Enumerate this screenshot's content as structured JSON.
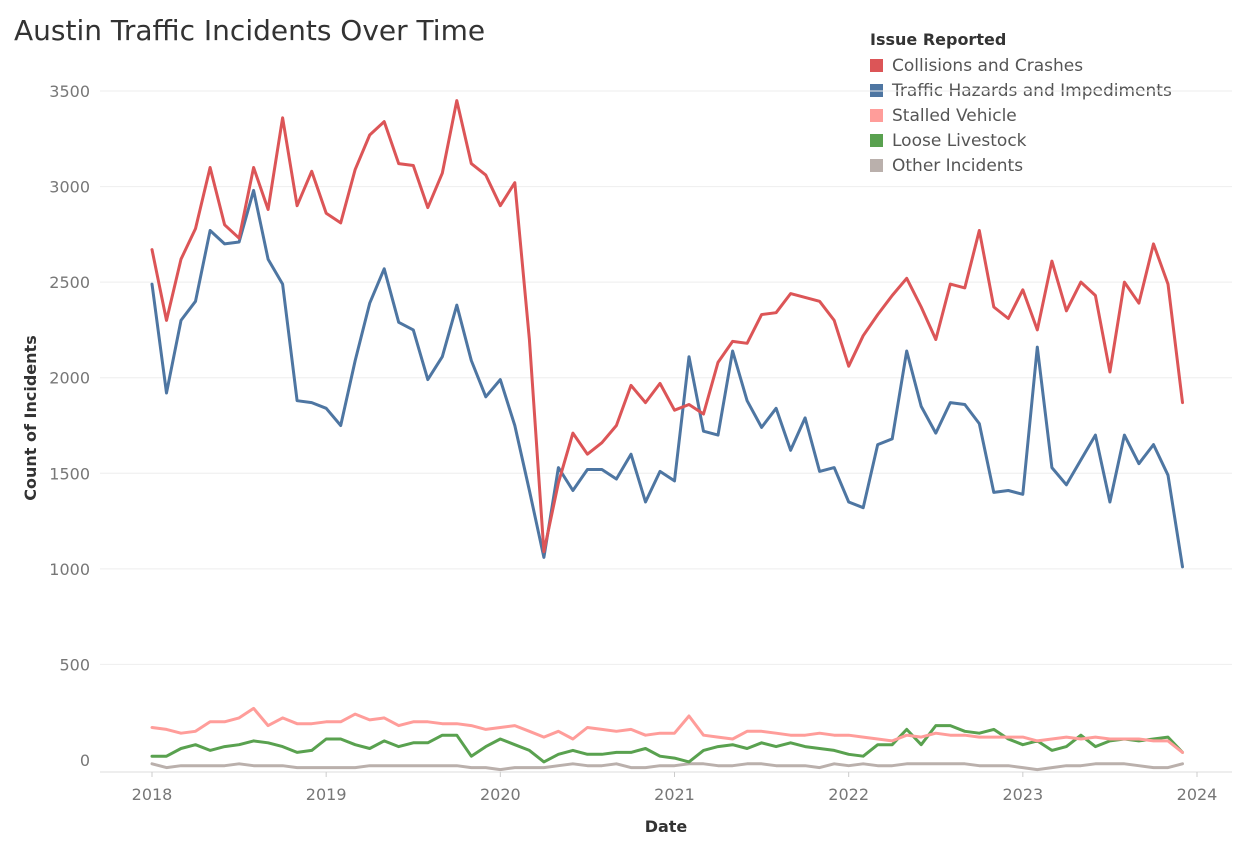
{
  "chart_data": {
    "type": "line",
    "title": "Austin Traffic Incidents Over Time",
    "xlabel": "Date",
    "ylabel": "Count of Incidents",
    "x_ticks": [
      "2018",
      "2019",
      "2020",
      "2021",
      "2022",
      "2023",
      "2024"
    ],
    "y_ticks": [
      0,
      500,
      1000,
      1500,
      2000,
      2500,
      3000,
      3500
    ],
    "xlim": [
      "2017-11",
      "2024-02"
    ],
    "ylim": [
      -60,
      3600
    ],
    "grid": true,
    "legend": {
      "title": "Issue Reported",
      "placement": "top-right"
    },
    "x": [
      "2018-01",
      "2018-02",
      "2018-03",
      "2018-04",
      "2018-05",
      "2018-06",
      "2018-07",
      "2018-08",
      "2018-09",
      "2018-10",
      "2018-11",
      "2018-12",
      "2019-01",
      "2019-02",
      "2019-03",
      "2019-04",
      "2019-05",
      "2019-06",
      "2019-07",
      "2019-08",
      "2019-09",
      "2019-10",
      "2019-11",
      "2019-12",
      "2020-01",
      "2020-02",
      "2020-03",
      "2020-04",
      "2020-05",
      "2020-06",
      "2020-07",
      "2020-08",
      "2020-09",
      "2020-10",
      "2020-11",
      "2020-12",
      "2021-01",
      "2021-02",
      "2021-03",
      "2021-04",
      "2021-05",
      "2021-06",
      "2021-07",
      "2021-08",
      "2021-09",
      "2021-10",
      "2021-11",
      "2021-12",
      "2022-01",
      "2022-02",
      "2022-03",
      "2022-04",
      "2022-05",
      "2022-06",
      "2022-07",
      "2022-08",
      "2022-09",
      "2022-10",
      "2022-11",
      "2022-12",
      "2023-01",
      "2023-02",
      "2023-03",
      "2023-04",
      "2023-05",
      "2023-06",
      "2023-07",
      "2023-08",
      "2023-09",
      "2023-10",
      "2023-11",
      "2023-12"
    ],
    "series": [
      {
        "name": "Collisions and Crashes",
        "color": "#dc5557",
        "values": [
          2670,
          2300,
          2620,
          2780,
          3100,
          2800,
          2730,
          3100,
          2880,
          3360,
          2900,
          3080,
          2860,
          2810,
          3090,
          3270,
          3340,
          3120,
          3110,
          2890,
          3070,
          3450,
          3120,
          3060,
          2900,
          3020,
          2200,
          1090,
          1450,
          1710,
          1600,
          1660,
          1750,
          1960,
          1870,
          1970,
          1830,
          1860,
          1810,
          2080,
          2190,
          2180,
          2330,
          2340,
          2440,
          2420,
          2400,
          2300,
          2060,
          2220,
          2330,
          2430,
          2520,
          2370,
          2200,
          2490,
          2470,
          2770,
          2370,
          2310,
          2460,
          2250,
          2610,
          2350,
          2500,
          2430,
          2030,
          2500,
          2390,
          2700,
          2490,
          1870
        ]
      },
      {
        "name": "Traffic Hazards and Impediments",
        "color": "#4e76a2",
        "values": [
          2490,
          1920,
          2300,
          2400,
          2770,
          2700,
          2710,
          2980,
          2620,
          2490,
          1880,
          1870,
          1840,
          1750,
          2090,
          2390,
          2570,
          2290,
          2250,
          1990,
          2110,
          2380,
          2090,
          1900,
          1990,
          1750,
          1410,
          1060,
          1530,
          1410,
          1520,
          1520,
          1470,
          1600,
          1350,
          1510,
          1460,
          2110,
          1720,
          1700,
          2140,
          1880,
          1740,
          1840,
          1620,
          1790,
          1510,
          1530,
          1350,
          1320,
          1650,
          1680,
          2140,
          1850,
          1710,
          1870,
          1860,
          1760,
          1400,
          1410,
          1390,
          2160,
          1530,
          1440,
          1570,
          1700,
          1350,
          1700,
          1550,
          1650,
          1490,
          1010
        ]
      },
      {
        "name": "Stalled Vehicle",
        "color": "#ff9d9a",
        "values": [
          170,
          160,
          140,
          150,
          200,
          200,
          220,
          270,
          180,
          220,
          190,
          190,
          200,
          200,
          240,
          210,
          220,
          180,
          200,
          200,
          190,
          190,
          180,
          160,
          170,
          180,
          150,
          120,
          150,
          110,
          170,
          160,
          150,
          160,
          130,
          140,
          140,
          230,
          130,
          120,
          110,
          150,
          150,
          140,
          130,
          130,
          140,
          130,
          130,
          120,
          110,
          100,
          130,
          120,
          140,
          130,
          130,
          120,
          120,
          120,
          120,
          100,
          110,
          120,
          110,
          120,
          110,
          110,
          110,
          100,
          100,
          40
        ]
      },
      {
        "name": "Loose Livestock",
        "color": "#59a14f",
        "values": [
          20,
          20,
          60,
          80,
          50,
          70,
          80,
          100,
          90,
          70,
          40,
          50,
          110,
          110,
          80,
          60,
          100,
          70,
          90,
          90,
          130,
          130,
          20,
          70,
          110,
          80,
          50,
          -10,
          30,
          50,
          30,
          30,
          40,
          40,
          60,
          20,
          10,
          -10,
          50,
          70,
          80,
          60,
          90,
          70,
          90,
          70,
          60,
          50,
          30,
          20,
          80,
          80,
          160,
          80,
          180,
          180,
          150,
          140,
          160,
          110,
          80,
          100,
          50,
          70,
          130,
          70,
          100,
          110,
          100,
          110,
          120,
          40
        ]
      },
      {
        "name": "Other Incidents",
        "color": "#bab0ac",
        "values": [
          -20,
          -40,
          -30,
          -30,
          -30,
          -30,
          -20,
          -30,
          -30,
          -30,
          -40,
          -40,
          -40,
          -40,
          -40,
          -30,
          -30,
          -30,
          -30,
          -30,
          -30,
          -30,
          -40,
          -40,
          -50,
          -40,
          -40,
          -40,
          -30,
          -20,
          -30,
          -30,
          -20,
          -40,
          -40,
          -30,
          -30,
          -20,
          -20,
          -30,
          -30,
          -20,
          -20,
          -30,
          -30,
          -30,
          -40,
          -20,
          -30,
          -20,
          -30,
          -30,
          -20,
          -20,
          -20,
          -20,
          -20,
          -30,
          -30,
          -30,
          -40,
          -50,
          -40,
          -30,
          -30,
          -20,
          -20,
          -20,
          -30,
          -40,
          -40,
          -20
        ]
      }
    ]
  }
}
